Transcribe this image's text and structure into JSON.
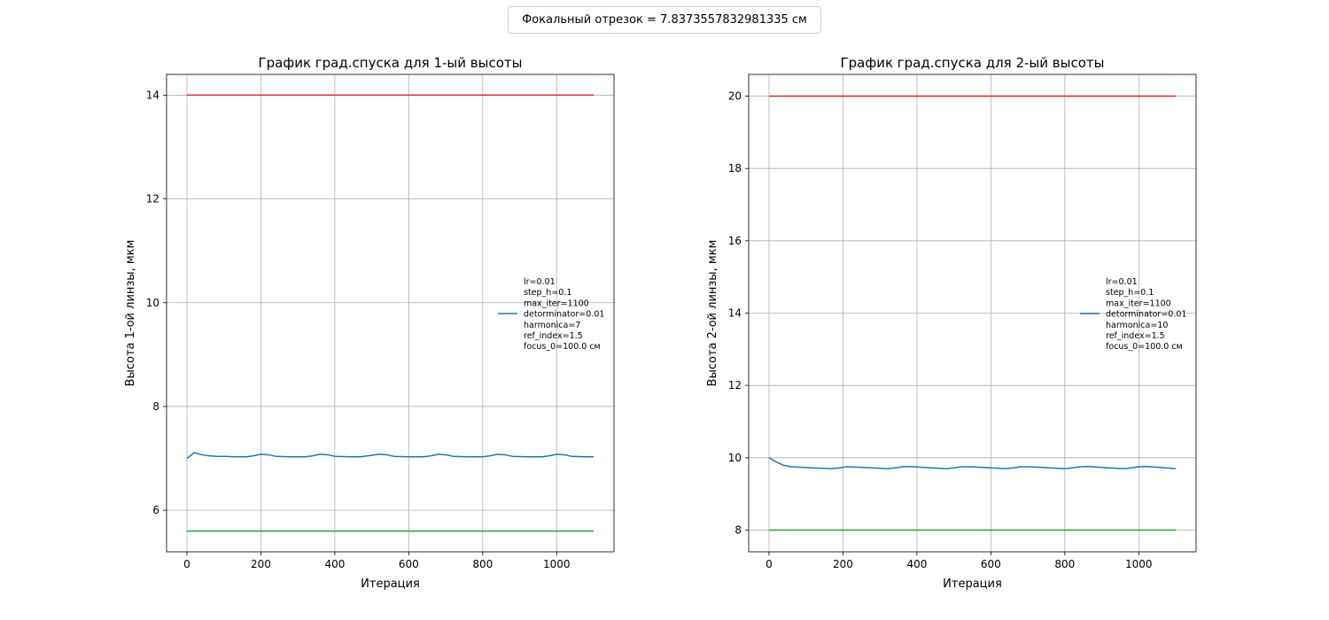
{
  "figure": {
    "suptitle": "Фокальный отрезок = 7.8373557832981335 см"
  },
  "chart_data": [
    {
      "type": "line",
      "title": "График град.спуска для 1-ый высоты",
      "xlabel": "Итерация",
      "ylabel": "Высота 1-ой линзы, мкм",
      "xlim": [
        -55,
        1155
      ],
      "ylim": [
        5.2,
        14.4
      ],
      "xticks": [
        0,
        200,
        400,
        600,
        800,
        1000
      ],
      "yticks": [
        6,
        8,
        10,
        12,
        14
      ],
      "grid": true,
      "legend": "center-right",
      "legend_text": [
        "lr=0.01",
        "step_h=0.1",
        "max_iter=1100",
        "detorminator=0.01",
        "harmonica=7",
        "ref_index=1.5",
        "focus_0=100.0 см"
      ],
      "series": [
        {
          "color": "#1f77b4",
          "x": [
            0,
            20,
            40,
            60,
            80,
            100,
            130,
            160,
            180,
            200,
            220,
            240,
            280,
            320,
            340,
            360,
            380,
            400,
            440,
            470,
            500,
            520,
            540,
            560,
            600,
            640,
            660,
            680,
            700,
            720,
            760,
            800,
            820,
            840,
            860,
            880,
            920,
            960,
            980,
            1000,
            1020,
            1040,
            1080,
            1100
          ],
          "y": [
            7.0,
            7.11,
            7.07,
            7.05,
            7.04,
            7.04,
            7.03,
            7.03,
            7.05,
            7.08,
            7.07,
            7.04,
            7.03,
            7.03,
            7.05,
            7.08,
            7.07,
            7.04,
            7.03,
            7.03,
            7.06,
            7.08,
            7.07,
            7.04,
            7.03,
            7.03,
            7.05,
            7.08,
            7.07,
            7.04,
            7.03,
            7.03,
            7.05,
            7.08,
            7.07,
            7.04,
            7.03,
            7.03,
            7.05,
            7.08,
            7.07,
            7.04,
            7.03,
            7.03
          ]
        },
        {
          "color": "#d62728",
          "x": [
            0,
            1100
          ],
          "y": [
            14.0,
            14.0
          ]
        },
        {
          "color": "#2ca02c",
          "x": [
            0,
            1100
          ],
          "y": [
            5.6,
            5.6
          ]
        }
      ]
    },
    {
      "type": "line",
      "title": "График град.спуска для 2-ый высоты",
      "xlabel": "Итерация",
      "ylabel": "Высота 2-ой линзы, мкм",
      "xlim": [
        -55,
        1155
      ],
      "ylim": [
        7.4,
        20.6
      ],
      "xticks": [
        0,
        200,
        400,
        600,
        800,
        1000
      ],
      "yticks": [
        8,
        10,
        12,
        14,
        16,
        18,
        20
      ],
      "grid": true,
      "legend": "center-right",
      "legend_text": [
        "lr=0.01",
        "step_h=0.1",
        "max_iter=1100",
        "detorminator=0.01",
        "harmonica=10",
        "ref_index=1.5",
        "focus_0=100.0 см"
      ],
      "series": [
        {
          "color": "#1f77b4",
          "x": [
            0,
            20,
            40,
            60,
            100,
            140,
            170,
            190,
            210,
            240,
            280,
            320,
            340,
            360,
            380,
            410,
            440,
            480,
            500,
            520,
            540,
            570,
            600,
            640,
            660,
            680,
            700,
            730,
            760,
            800,
            820,
            840,
            860,
            890,
            920,
            960,
            980,
            1000,
            1020,
            1050,
            1100
          ],
          "y": [
            10.0,
            9.88,
            9.79,
            9.75,
            9.73,
            9.71,
            9.7,
            9.72,
            9.75,
            9.74,
            9.72,
            9.7,
            9.72,
            9.75,
            9.76,
            9.74,
            9.72,
            9.7,
            9.72,
            9.75,
            9.75,
            9.74,
            9.72,
            9.7,
            9.72,
            9.75,
            9.75,
            9.74,
            9.72,
            9.7,
            9.72,
            9.75,
            9.76,
            9.74,
            9.72,
            9.7,
            9.72,
            9.75,
            9.76,
            9.74,
            9.7
          ]
        },
        {
          "color": "#d62728",
          "x": [
            0,
            1100
          ],
          "y": [
            20.0,
            20.0
          ]
        },
        {
          "color": "#2ca02c",
          "x": [
            0,
            1100
          ],
          "y": [
            8.0,
            8.0
          ]
        }
      ]
    }
  ]
}
